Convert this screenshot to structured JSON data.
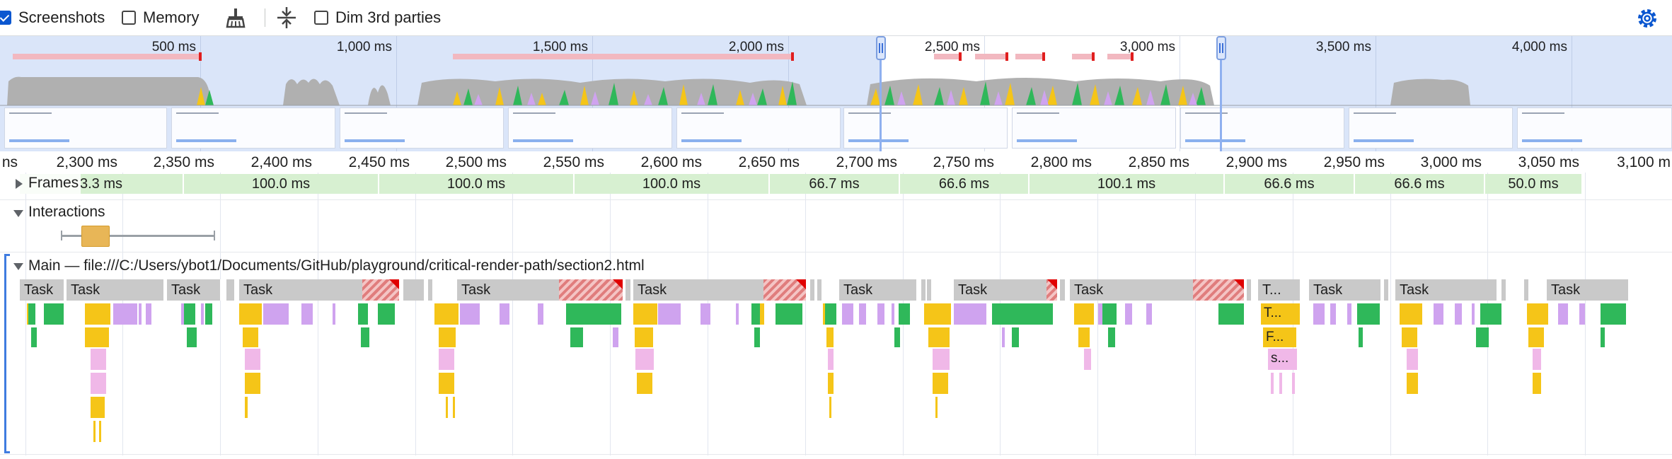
{
  "toolbar": {
    "screenshots_label": "Screenshots",
    "memory_label": "Memory",
    "dim_3rd_parties_label": "Dim 3rd parties",
    "screenshots_checked": true,
    "memory_checked": false,
    "dim_3rd_parties_checked": false,
    "accent_color": "#0b57d0"
  },
  "overview": {
    "ticks": [
      "500 ms",
      "1,000 ms",
      "1,500 ms",
      "2,000 ms",
      "2,500 ms",
      "3,000 ms",
      "3,500 ms",
      "4,000 ms"
    ],
    "selection_start_ms": 2293,
    "selection_end_ms": 3130
  },
  "ruler": {
    "ticks": [
      "ns",
      "2,300 ms",
      "2,350 ms",
      "2,400 ms",
      "2,450 ms",
      "2,500 ms",
      "2,550 ms",
      "2,600 ms",
      "2,650 ms",
      "2,700 ms",
      "2,750 ms",
      "2,800 ms",
      "2,850 ms",
      "2,900 ms",
      "2,950 ms",
      "3,000 ms",
      "3,050 ms",
      "3,100 m"
    ]
  },
  "frames": {
    "label": "Frames",
    "items": [
      "3.3 ms",
      "100.0 ms",
      "100.0 ms",
      "100.0 ms",
      "66.7 ms",
      "66.6 ms",
      "100.1 ms",
      "66.6 ms",
      "66.6 ms",
      "50.0 ms"
    ]
  },
  "interactions": {
    "label": "Interactions"
  },
  "main": {
    "label": "Main — file:///C:/Users/ybot1/Documents/GitHub/playground/critical-render-path/section2.html",
    "task_label": "Task",
    "tasks": [
      "Task",
      "Task",
      "Task",
      "Task",
      "Task",
      "Task",
      "Task",
      "Task",
      "Task",
      "T...",
      "Task",
      "Task",
      "Task"
    ],
    "sub_events": [
      "T...",
      "F...",
      "s..."
    ]
  },
  "colors": {
    "scripting": "#f5c518",
    "rendering": "#cfa3ef",
    "painting": "#2fb85a",
    "task": "#c9c9c9",
    "long_task": "#e00000"
  }
}
